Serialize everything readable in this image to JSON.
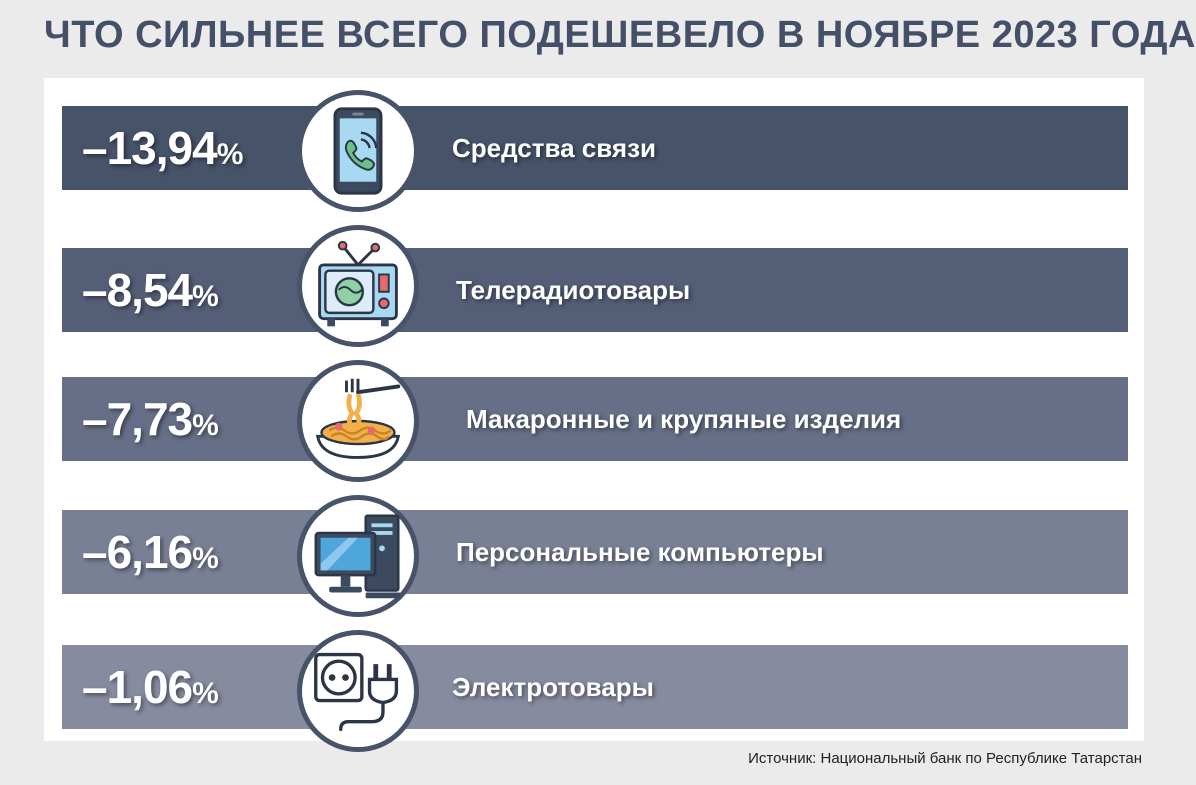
{
  "title": "ЧТО СИЛЬНЕЕ ВСЕГО ПОДЕШЕВЕЛО В НОЯБРЕ 2023 ГОДА",
  "source": "Источник: Национальный банк по Республике Татарстан",
  "chart_data": {
    "type": "bar",
    "title": "ЧТО СИЛЬНЕЕ ВСЕГО ПОДЕШЕВЕЛО В НОЯБРЕ 2023 ГОДА",
    "categories": [
      "Средства связи",
      "Телерадиотовары",
      "Макаронные и крупяные изделия",
      "Персональные компьютеры",
      "Электротовары"
    ],
    "values": [
      -13.94,
      -8.54,
      -7.73,
      -6.16,
      -1.06
    ],
    "value_labels": [
      "–13,94",
      "–8,54",
      "–7,73",
      "–6,16",
      "–1,06"
    ],
    "unit": "%",
    "icons": [
      "smartphone-icon",
      "tv-icon",
      "pasta-icon",
      "computer-icon",
      "power-socket-icon"
    ],
    "colors": [
      "#465369",
      "#545e77",
      "#666f87",
      "#797f95",
      "#878ba0"
    ],
    "circle_border": "#465369",
    "title_color": "#435068"
  }
}
